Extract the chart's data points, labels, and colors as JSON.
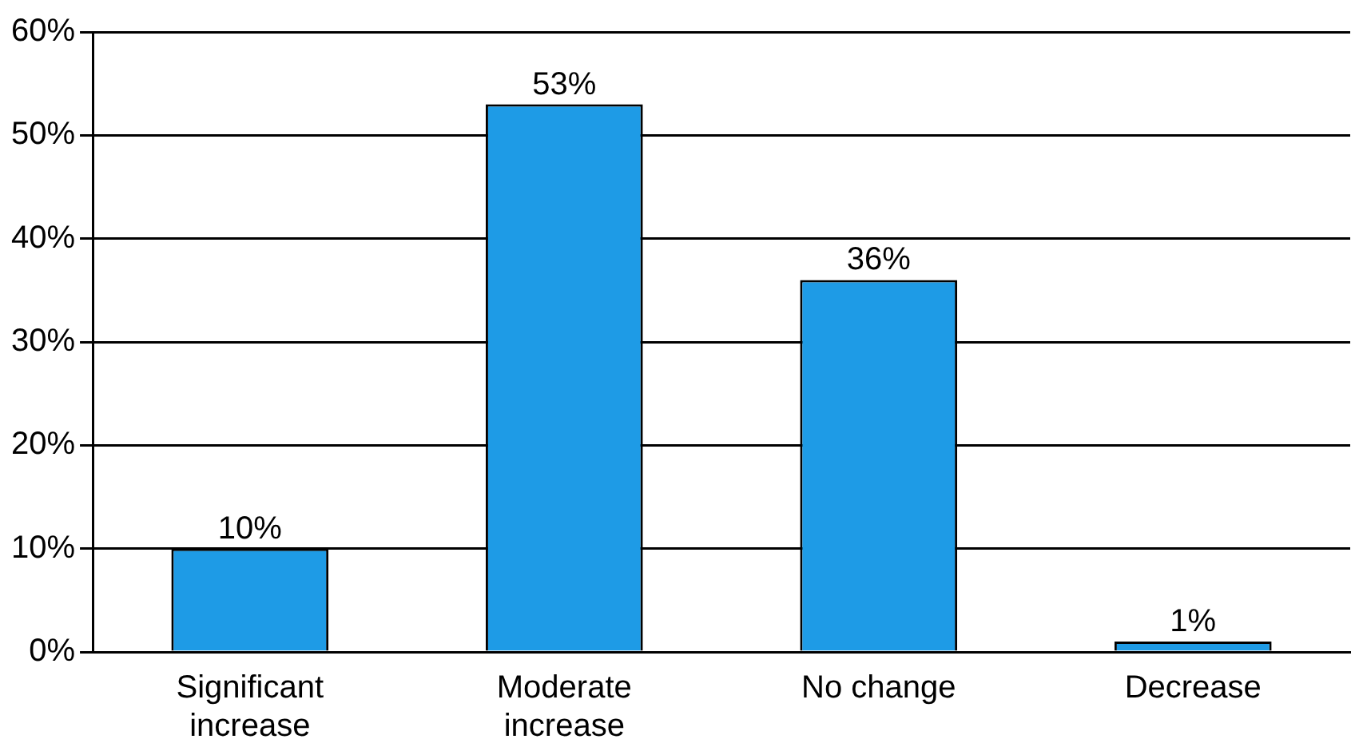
{
  "chart_data": {
    "type": "bar",
    "categories": [
      "Significant increase",
      "Moderate increase",
      "No change",
      "Decrease"
    ],
    "values": [
      10,
      53,
      36,
      1
    ],
    "value_labels": [
      "10%",
      "53%",
      "36%",
      "1%"
    ],
    "color": "#1e9be6",
    "ylim": [
      0,
      60
    ],
    "yticks": [
      {
        "value": 0,
        "label": "0%"
      },
      {
        "value": 10,
        "label": "10%"
      },
      {
        "value": 20,
        "label": "20%"
      },
      {
        "value": 30,
        "label": "30%"
      },
      {
        "value": 40,
        "label": "40%"
      },
      {
        "value": 50,
        "label": "50%"
      },
      {
        "value": 60,
        "label": "60%"
      }
    ],
    "grid": "y",
    "legend": false
  }
}
